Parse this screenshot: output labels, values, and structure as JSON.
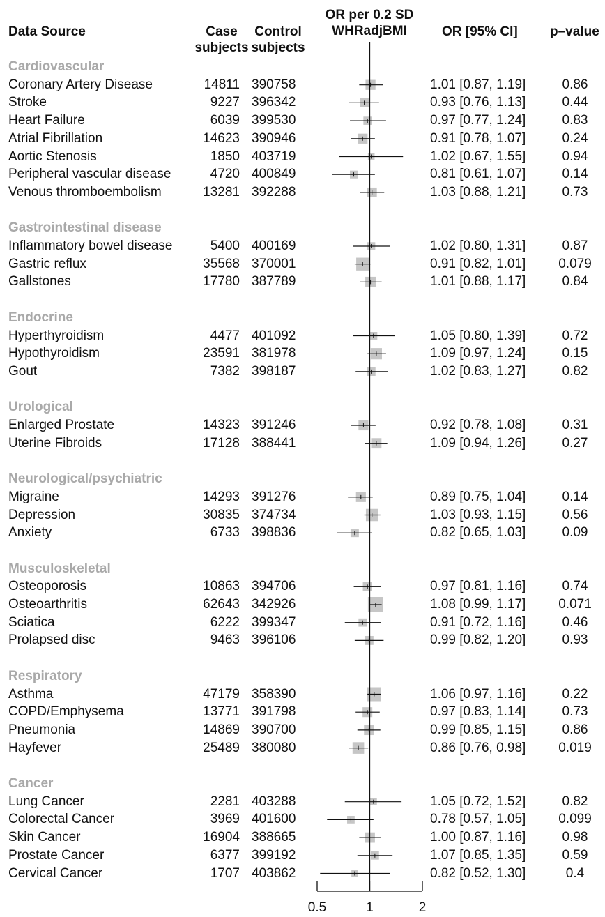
{
  "headers": {
    "source": "Data Source",
    "cases_1": "Case",
    "cases_2": "subjects",
    "controls_1": "Control",
    "controls_2": "subjects",
    "plot_1": "OR per 0.2 SD",
    "plot_2": "WHRadjBMI",
    "or": "OR [95% CI]",
    "p": "p–value"
  },
  "axis_ticks": [
    "0.5",
    "1",
    "2"
  ],
  "colors": {
    "box": "#c6c6c6",
    "line": "#111111",
    "group": "#a9a9a9"
  },
  "chart_data": {
    "type": "forest",
    "x_scale": "log",
    "xlim": [
      0.5,
      2
    ],
    "reference_line": 1,
    "ticks": [
      0.5,
      1,
      2
    ],
    "groups": [
      {
        "name": "Cardiovascular",
        "rows": [
          {
            "label": "Coronary Artery Disease",
            "cases": "14811",
            "controls": "390758",
            "or": 1.01,
            "lo": 0.87,
            "hi": 1.19,
            "or_text": "1.01  [0.87, 1.19]",
            "p": "0.86"
          },
          {
            "label": "Stroke",
            "cases": "9227",
            "controls": "396342",
            "or": 0.93,
            "lo": 0.76,
            "hi": 1.13,
            "or_text": "0.93  [0.76, 1.13]",
            "p": "0.44"
          },
          {
            "label": "Heart Failure",
            "cases": "6039",
            "controls": "399530",
            "or": 0.97,
            "lo": 0.77,
            "hi": 1.24,
            "or_text": "0.97  [0.77, 1.24]",
            "p": "0.83"
          },
          {
            "label": "Atrial Fibrillation",
            "cases": "14623",
            "controls": "390946",
            "or": 0.91,
            "lo": 0.78,
            "hi": 1.07,
            "or_text": "0.91  [0.78, 1.07]",
            "p": "0.24"
          },
          {
            "label": "Aortic Stenosis",
            "cases": "1850",
            "controls": "403719",
            "or": 1.02,
            "lo": 0.67,
            "hi": 1.55,
            "or_text": "1.02  [0.67, 1.55]",
            "p": "0.94"
          },
          {
            "label": "Peripheral vascular disease",
            "cases": "4720",
            "controls": "400849",
            "or": 0.81,
            "lo": 0.61,
            "hi": 1.07,
            "or_text": "0.81  [0.61, 1.07]",
            "p": "0.14"
          },
          {
            "label": "Venous thromboembolism",
            "cases": "13281",
            "controls": "392288",
            "or": 1.03,
            "lo": 0.88,
            "hi": 1.21,
            "or_text": "1.03  [0.88, 1.21]",
            "p": "0.73"
          }
        ]
      },
      {
        "name": "Gastrointestinal disease",
        "rows": [
          {
            "label": "Inflammatory bowel disease",
            "cases": "5400",
            "controls": "400169",
            "or": 1.02,
            "lo": 0.8,
            "hi": 1.31,
            "or_text": "1.02  [0.80, 1.31]",
            "p": "0.87"
          },
          {
            "label": "Gastric reflux",
            "cases": "35568",
            "controls": "370001",
            "or": 0.91,
            "lo": 0.82,
            "hi": 1.01,
            "or_text": "0.91  [0.82, 1.01]",
            "p": "0.079"
          },
          {
            "label": "Gallstones",
            "cases": "17780",
            "controls": "387789",
            "or": 1.01,
            "lo": 0.88,
            "hi": 1.17,
            "or_text": "1.01  [0.88, 1.17]",
            "p": "0.84"
          }
        ]
      },
      {
        "name": "Endocrine",
        "rows": [
          {
            "label": "Hyperthyroidism",
            "cases": "4477",
            "controls": "401092",
            "or": 1.05,
            "lo": 0.8,
            "hi": 1.39,
            "or_text": "1.05  [0.80, 1.39]",
            "p": "0.72"
          },
          {
            "label": "Hypothyroidism",
            "cases": "23591",
            "controls": "381978",
            "or": 1.09,
            "lo": 0.97,
            "hi": 1.24,
            "or_text": "1.09  [0.97, 1.24]",
            "p": "0.15"
          },
          {
            "label": "Gout",
            "cases": "7382",
            "controls": "398187",
            "or": 1.02,
            "lo": 0.83,
            "hi": 1.27,
            "or_text": "1.02  [0.83, 1.27]",
            "p": "0.82"
          }
        ]
      },
      {
        "name": "Urological",
        "rows": [
          {
            "label": "Enlarged Prostate",
            "cases": "14323",
            "controls": "391246",
            "or": 0.92,
            "lo": 0.78,
            "hi": 1.08,
            "or_text": "0.92  [0.78, 1.08]",
            "p": "0.31"
          },
          {
            "label": "Uterine Fibroids",
            "cases": "17128",
            "controls": "388441",
            "or": 1.09,
            "lo": 0.94,
            "hi": 1.26,
            "or_text": "1.09  [0.94, 1.26]",
            "p": "0.27"
          }
        ]
      },
      {
        "name": "Neurological/psychiatric",
        "rows": [
          {
            "label": "Migraine",
            "cases": "14293",
            "controls": "391276",
            "or": 0.89,
            "lo": 0.75,
            "hi": 1.04,
            "or_text": "0.89  [0.75, 1.04]",
            "p": "0.14"
          },
          {
            "label": "Depression",
            "cases": "30835",
            "controls": "374734",
            "or": 1.03,
            "lo": 0.93,
            "hi": 1.15,
            "or_text": "1.03  [0.93, 1.15]",
            "p": "0.56"
          },
          {
            "label": "Anxiety",
            "cases": "6733",
            "controls": "398836",
            "or": 0.82,
            "lo": 0.65,
            "hi": 1.03,
            "or_text": "0.82  [0.65, 1.03]",
            "p": "0.09"
          }
        ]
      },
      {
        "name": "Musculoskeletal",
        "rows": [
          {
            "label": "Osteoporosis",
            "cases": "10863",
            "controls": "394706",
            "or": 0.97,
            "lo": 0.81,
            "hi": 1.16,
            "or_text": "0.97  [0.81, 1.16]",
            "p": "0.74"
          },
          {
            "label": "Osteoarthritis",
            "cases": "62643",
            "controls": "342926",
            "or": 1.08,
            "lo": 0.99,
            "hi": 1.17,
            "or_text": "1.08  [0.99, 1.17]",
            "p": "0.071"
          },
          {
            "label": "Sciatica",
            "cases": "6222",
            "controls": "399347",
            "or": 0.91,
            "lo": 0.72,
            "hi": 1.16,
            "or_text": "0.91  [0.72, 1.16]",
            "p": "0.46"
          },
          {
            "label": "Prolapsed disc",
            "cases": "9463",
            "controls": "396106",
            "or": 0.99,
            "lo": 0.82,
            "hi": 1.2,
            "or_text": "0.99  [0.82, 1.20]",
            "p": "0.93"
          }
        ]
      },
      {
        "name": "Respiratory",
        "rows": [
          {
            "label": "Asthma",
            "cases": "47179",
            "controls": "358390",
            "or": 1.06,
            "lo": 0.97,
            "hi": 1.16,
            "or_text": "1.06  [0.97, 1.16]",
            "p": "0.22"
          },
          {
            "label": "COPD/Emphysema",
            "cases": "13771",
            "controls": "391798",
            "or": 0.97,
            "lo": 0.83,
            "hi": 1.14,
            "or_text": "0.97  [0.83, 1.14]",
            "p": "0.73"
          },
          {
            "label": "Pneumonia",
            "cases": "14869",
            "controls": "390700",
            "or": 0.99,
            "lo": 0.85,
            "hi": 1.15,
            "or_text": "0.99  [0.85, 1.15]",
            "p": "0.86"
          },
          {
            "label": "Hayfever",
            "cases": "25489",
            "controls": "380080",
            "or": 0.86,
            "lo": 0.76,
            "hi": 0.98,
            "or_text": "0.86  [0.76, 0.98]",
            "p": "0.019"
          }
        ]
      },
      {
        "name": "Cancer",
        "rows": [
          {
            "label": "Lung Cancer",
            "cases": "2281",
            "controls": "403288",
            "or": 1.05,
            "lo": 0.72,
            "hi": 1.52,
            "or_text": "1.05  [0.72, 1.52]",
            "p": "0.82"
          },
          {
            "label": "Colorectal Cancer",
            "cases": "3969",
            "controls": "401600",
            "or": 0.78,
            "lo": 0.57,
            "hi": 1.05,
            "or_text": "0.78  [0.57, 1.05]",
            "p": "0.099"
          },
          {
            "label": "Skin Cancer",
            "cases": "16904",
            "controls": "388665",
            "or": 1.0,
            "lo": 0.87,
            "hi": 1.16,
            "or_text": "1.00  [0.87, 1.16]",
            "p": "0.98"
          },
          {
            "label": "Prostate Cancer",
            "cases": "6377",
            "controls": "399192",
            "or": 1.07,
            "lo": 0.85,
            "hi": 1.35,
            "or_text": "1.07  [0.85, 1.35]",
            "p": "0.59"
          },
          {
            "label": "Cervical Cancer",
            "cases": "1707",
            "controls": "403862",
            "or": 0.82,
            "lo": 0.52,
            "hi": 1.3,
            "or_text": "0.82  [0.52, 1.30]",
            "p": "0.4"
          }
        ]
      }
    ]
  }
}
